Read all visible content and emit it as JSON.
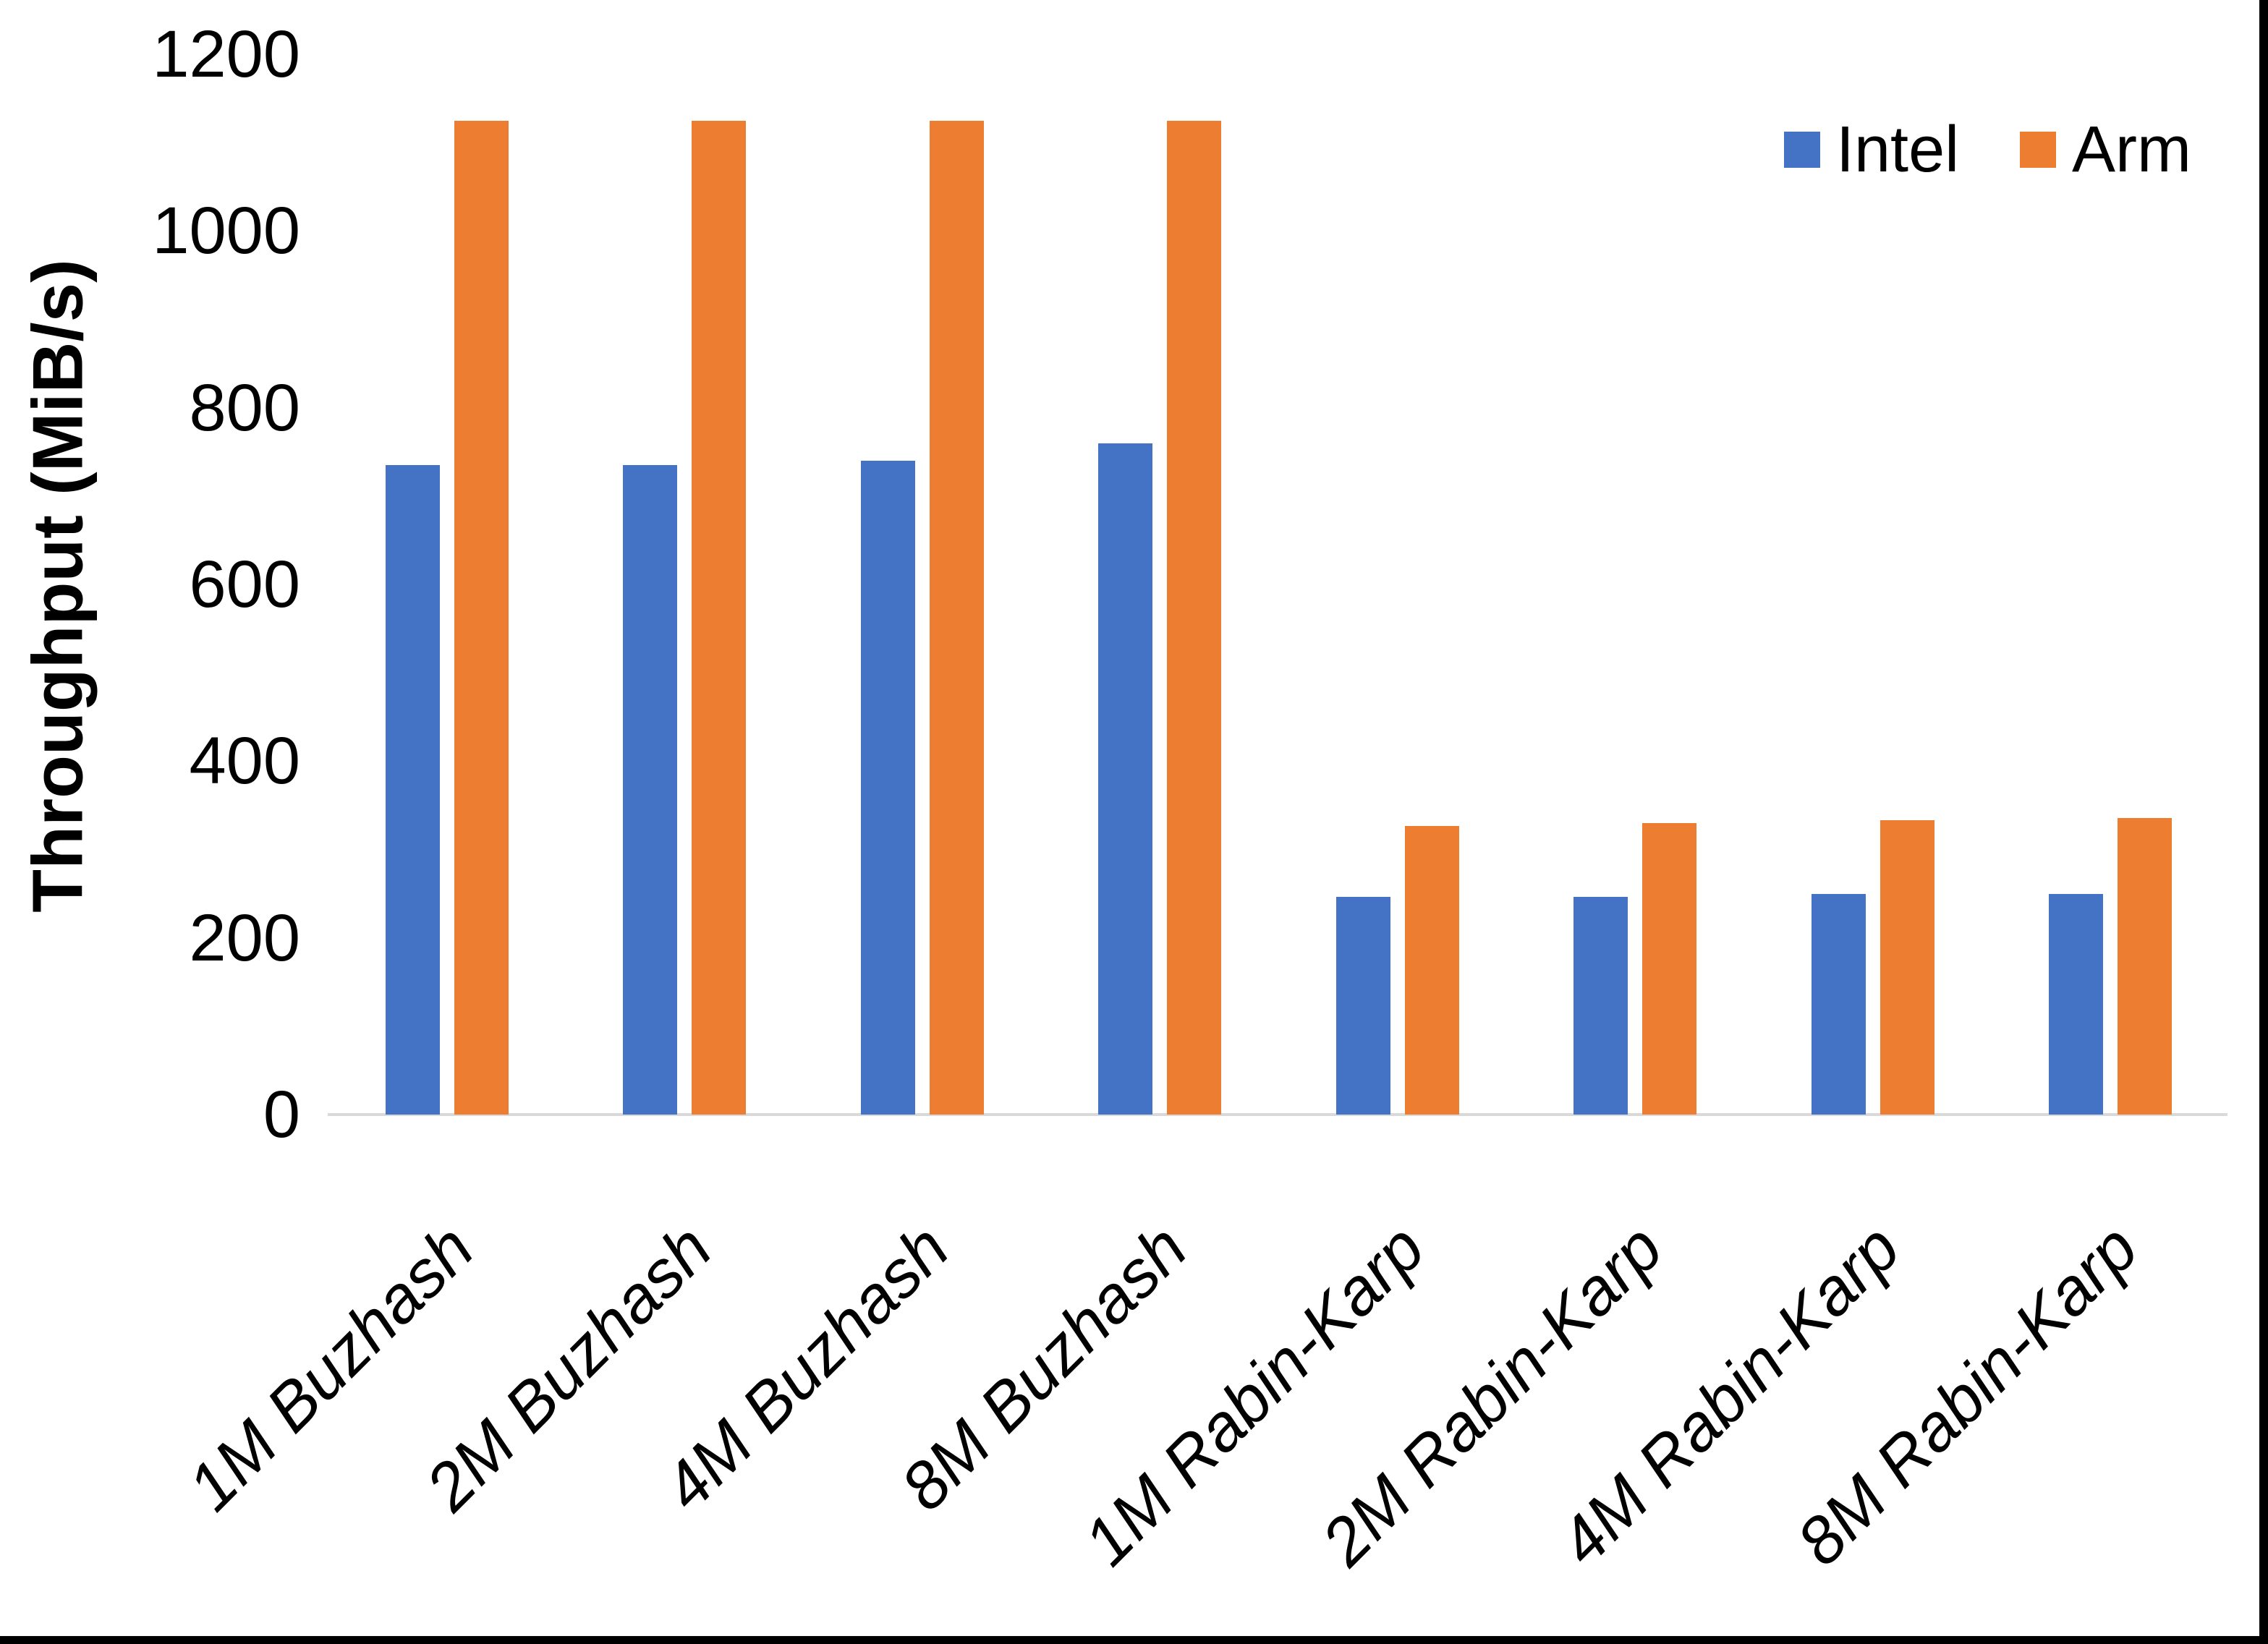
{
  "page": {
    "background": "#FFFFFF",
    "border_color": "#000000"
  },
  "chart_data": {
    "type": "bar",
    "title": "",
    "xlabel": "",
    "ylabel": "Throughput (MiB/s)",
    "categories": [
      "1M Buzhash",
      "2M Buzhash",
      "4M Buzhash",
      "8M Buzhash",
      "1M Rabin-Karp",
      "2M Rabin-Karp",
      "4M Rabin-Karp",
      "8M Rabin-Karp"
    ],
    "series": [
      {
        "name": "Intel",
        "color": "#4472C4",
        "values": [
          735,
          735,
          740,
          760,
          246,
          246,
          250,
          250
        ]
      },
      {
        "name": "Arm",
        "color": "#ED7D31",
        "values": [
          1125,
          1125,
          1125,
          1125,
          327,
          330,
          333,
          336
        ]
      }
    ],
    "ylim": [
      0,
      1200
    ],
    "yticks": [
      0,
      200,
      400,
      600,
      800,
      1000,
      1200
    ],
    "grid": false,
    "legend_position": "top-right",
    "axis_line_color": "#D9D9D9",
    "text_color": "#000000"
  }
}
